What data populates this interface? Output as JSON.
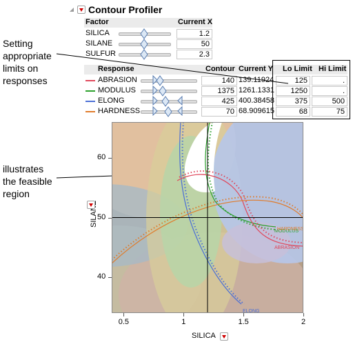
{
  "annotations": {
    "limits_lines": [
      "Setting",
      "appropriate",
      "limits on",
      "responses"
    ],
    "region_lines": [
      "illustrates",
      "the feasible",
      "region"
    ]
  },
  "profiler": {
    "title": "Contour Profiler",
    "factor_header": "Factor",
    "current_x_header": "Current X",
    "factors": [
      {
        "name": "SILICA",
        "value": "1.2",
        "position": 0.5
      },
      {
        "name": "SILANE",
        "value": "50",
        "position": 0.5
      },
      {
        "name": "SULFUR",
        "value": "2.3",
        "position": 0.5
      }
    ],
    "response_header": "Response",
    "contour_header": "Contour",
    "current_y_header": "Current Y",
    "lo_limit_header": "Lo Limit",
    "hi_limit_header": "Hi Limit",
    "responses": [
      {
        "name": "ABRASION",
        "color": "#e0475b",
        "contour": "140",
        "current_y": "139.11924",
        "lo": "125",
        "hi": "."
      },
      {
        "name": "MODULUS",
        "color": "#2ca02c",
        "contour": "1375",
        "current_y": "1261.1331",
        "lo": "1250",
        "hi": "."
      },
      {
        "name": "ELONG",
        "color": "#4b6fd6",
        "contour": "425",
        "current_y": "400.38458",
        "lo": "375",
        "hi": "500"
      },
      {
        "name": "HARDNESS",
        "color": "#e07b2a",
        "contour": "70",
        "current_y": "68.909615",
        "lo": "68",
        "hi": "75"
      }
    ]
  },
  "chart_data": {
    "type": "contour",
    "xlabel": "SILICA",
    "ylabel": "SILANE",
    "x_ticks": [
      "0.5",
      "1",
      "1.5",
      "2"
    ],
    "y_ticks": [
      "40",
      "50",
      "60"
    ],
    "xlim": [
      0.4,
      2.0
    ],
    "ylim": [
      34,
      66
    ],
    "crosshair": {
      "x": 1.2,
      "y": 50
    },
    "contour_labels": [
      "ABRASION",
      "MODULUS",
      "ELONG",
      "HARDNESS"
    ],
    "colors": {
      "abrasion": "#e0475b",
      "modulus": "#2ca02c",
      "elong": "#4b6fd6",
      "hardness": "#e07b2a"
    }
  }
}
